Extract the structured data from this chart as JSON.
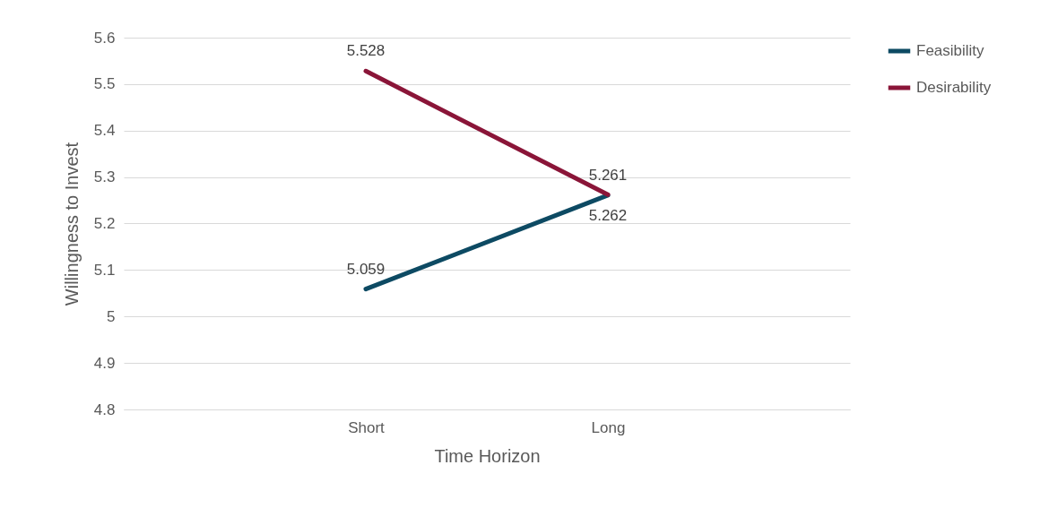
{
  "chart_data": {
    "type": "line",
    "xlabel": "Time Horizon",
    "ylabel": "Willingness to Invest",
    "categories": [
      "Short",
      "Long"
    ],
    "series": [
      {
        "name": "Feasibility",
        "color": "#0d4a63",
        "values": [
          5.059,
          5.261
        ]
      },
      {
        "name": "Desirability",
        "color": "#8a1538",
        "values": [
          5.528,
          5.262
        ]
      }
    ],
    "ylim": [
      4.8,
      5.6
    ],
    "yticks": [
      4.8,
      4.9,
      5,
      5.1,
      5.2,
      5.3,
      5.4,
      5.5,
      5.6
    ],
    "grid": "y",
    "legend": "right",
    "data_labels": true,
    "marker": "none",
    "line_style": "solid"
  }
}
